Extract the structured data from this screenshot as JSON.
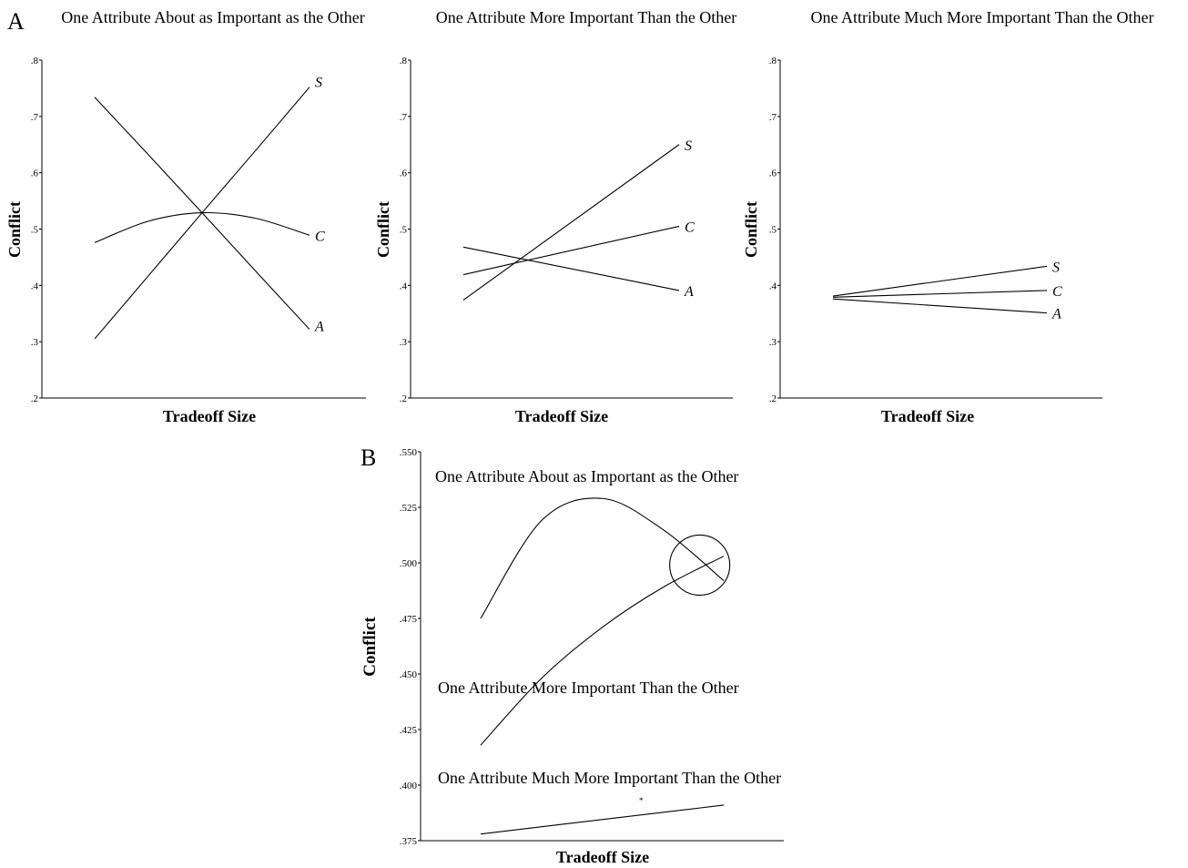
{
  "figure": {
    "panel_a_letter": "A",
    "panel_b_letter": "B",
    "b_stray_mark": "*"
  },
  "chart_data": [
    {
      "type": "line",
      "panel": "A",
      "title": "One Attribute About as Important as the Other",
      "xlabel": "Tradeoff Size",
      "ylabel": "Conflict",
      "ylim": [
        0.2,
        0.8
      ],
      "yticks": [
        ".2",
        ".3",
        ".4",
        ".5",
        ".6",
        ".7",
        ".8"
      ],
      "grid": false,
      "series": [
        {
          "name": "S",
          "x": [
            0,
            0.25,
            0.5,
            0.75,
            1
          ],
          "values": [
            0.305,
            0.417,
            0.529,
            0.64,
            0.752
          ]
        },
        {
          "name": "C",
          "x": [
            0,
            0.25,
            0.5,
            0.75,
            1
          ],
          "values": [
            0.476,
            0.514,
            0.529,
            0.519,
            0.489
          ]
        },
        {
          "name": "A",
          "x": [
            0,
            0.25,
            0.5,
            0.75,
            1
          ],
          "values": [
            0.734,
            0.632,
            0.529,
            0.425,
            0.322
          ]
        }
      ]
    },
    {
      "type": "line",
      "panel": "A",
      "title": "One Attribute More Important Than the Other",
      "xlabel": "Tradeoff Size",
      "ylabel": "Conflict",
      "ylim": [
        0.2,
        0.8
      ],
      "yticks": [
        ".2",
        ".3",
        ".4",
        ".5",
        ".6",
        ".7",
        ".8"
      ],
      "grid": false,
      "series": [
        {
          "name": "S",
          "x": [
            0,
            1
          ],
          "values": [
            0.374,
            0.65
          ]
        },
        {
          "name": "C",
          "x": [
            0,
            1
          ],
          "values": [
            0.419,
            0.505
          ]
        },
        {
          "name": "A",
          "x": [
            0,
            1
          ],
          "values": [
            0.468,
            0.391
          ]
        }
      ]
    },
    {
      "type": "line",
      "panel": "A",
      "title": "One Attribute Much More  Important Than the Other",
      "xlabel": "Tradeoff Size",
      "ylabel": "Conflict",
      "ylim": [
        0.2,
        0.8
      ],
      "yticks": [
        ".2",
        ".3",
        ".4",
        ".5",
        ".6",
        ".7",
        ".8"
      ],
      "grid": false,
      "series": [
        {
          "name": "S",
          "x": [
            0,
            1
          ],
          "values": [
            0.381,
            0.434
          ]
        },
        {
          "name": "C",
          "x": [
            0,
            1
          ],
          "values": [
            0.379,
            0.391
          ]
        },
        {
          "name": "A",
          "x": [
            0,
            1
          ],
          "values": [
            0.376,
            0.351
          ]
        }
      ]
    },
    {
      "type": "line",
      "panel": "B",
      "title": "",
      "xlabel": "Tradeoff Size",
      "ylabel": "Conflict",
      "ylim": [
        0.375,
        0.55
      ],
      "yticks": [
        ".375",
        ".400",
        ".425",
        ".450",
        ".475",
        ".500",
        ".525",
        ".550"
      ],
      "grid": false,
      "series": [
        {
          "name": "One Attribute About as Important as the Other",
          "x": [
            0,
            0.25,
            0.5,
            0.75,
            1
          ],
          "values": [
            0.475,
            0.519,
            0.529,
            0.515,
            0.492
          ]
        },
        {
          "name": "One Attribute More Important Than the Other",
          "x": [
            0,
            0.25,
            0.5,
            0.75,
            1
          ],
          "values": [
            0.418,
            0.448,
            0.471,
            0.489,
            0.503
          ]
        },
        {
          "name": "One Attribute Much More  Important Than the Other",
          "x": [
            0,
            1
          ],
          "values": [
            0.378,
            0.391
          ]
        }
      ],
      "annotations": [
        {
          "type": "circle",
          "x": 0.95,
          "y": 0.499,
          "note": "crossing region highlighted"
        }
      ]
    }
  ]
}
